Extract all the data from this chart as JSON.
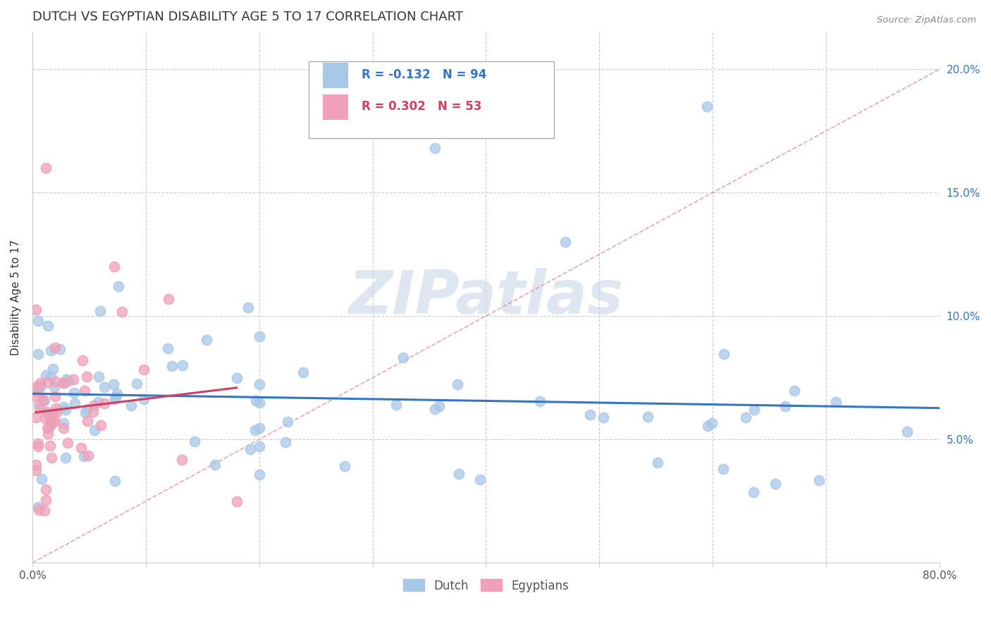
{
  "title": "DUTCH VS EGYPTIAN DISABILITY AGE 5 TO 17 CORRELATION CHART",
  "source_text": "Source: ZipAtlas.com",
  "ylabel": "Disability Age 5 to 17",
  "xlim": [
    0.0,
    0.8
  ],
  "ylim": [
    0.0,
    0.215
  ],
  "xtick_vals": [
    0.0,
    0.1,
    0.2,
    0.3,
    0.4,
    0.5,
    0.6,
    0.7,
    0.8
  ],
  "ytick_vals": [
    0.0,
    0.05,
    0.1,
    0.15,
    0.2
  ],
  "dutch_color": "#a8c8e8",
  "dutch_line_color": "#3575c5",
  "egyptian_color": "#f0a0b8",
  "egyptian_line_color": "#d04060",
  "diag_color": "#e08090",
  "dutch_R": -0.132,
  "dutch_N": 94,
  "egyptian_R": 0.302,
  "egyptian_N": 53,
  "title_color": "#333333",
  "title_fontsize": 13,
  "axis_label_color": "#333333",
  "tick_color": "#3575c5",
  "legend_dutch_label": "Dutch",
  "legend_egyptian_label": "Egyptians",
  "watermark": "ZIPatlas",
  "watermark_color": "#c8d8e8",
  "source_color": "#888888",
  "grid_color": "#cccccc"
}
